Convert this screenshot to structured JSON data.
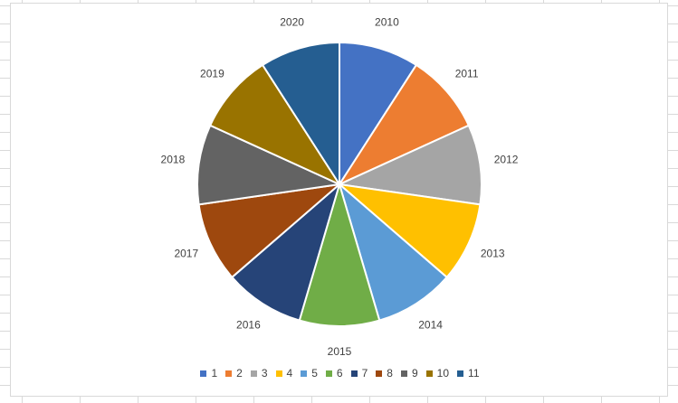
{
  "chart_data": {
    "type": "pie",
    "title": "",
    "categories": [
      "2010",
      "2011",
      "2012",
      "2013",
      "2014",
      "2015",
      "2016",
      "2017",
      "2018",
      "2019",
      "2020"
    ],
    "values": [
      1,
      1,
      1,
      1,
      1,
      1,
      1,
      1,
      1,
      1,
      1
    ],
    "colors": [
      "#4472C4",
      "#ED7D31",
      "#A5A5A5",
      "#FFC000",
      "#5B9BD5",
      "#70AD47",
      "#264478",
      "#9E480E",
      "#636363",
      "#997300",
      "#255E91"
    ],
    "legend": {
      "position": "bottom",
      "entries": [
        "1",
        "2",
        "3",
        "4",
        "5",
        "6",
        "7",
        "8",
        "9",
        "10",
        "11"
      ]
    },
    "start_angle": "12 o'clock",
    "direction": "clockwise",
    "slice_border_color": "#FFFFFF"
  }
}
